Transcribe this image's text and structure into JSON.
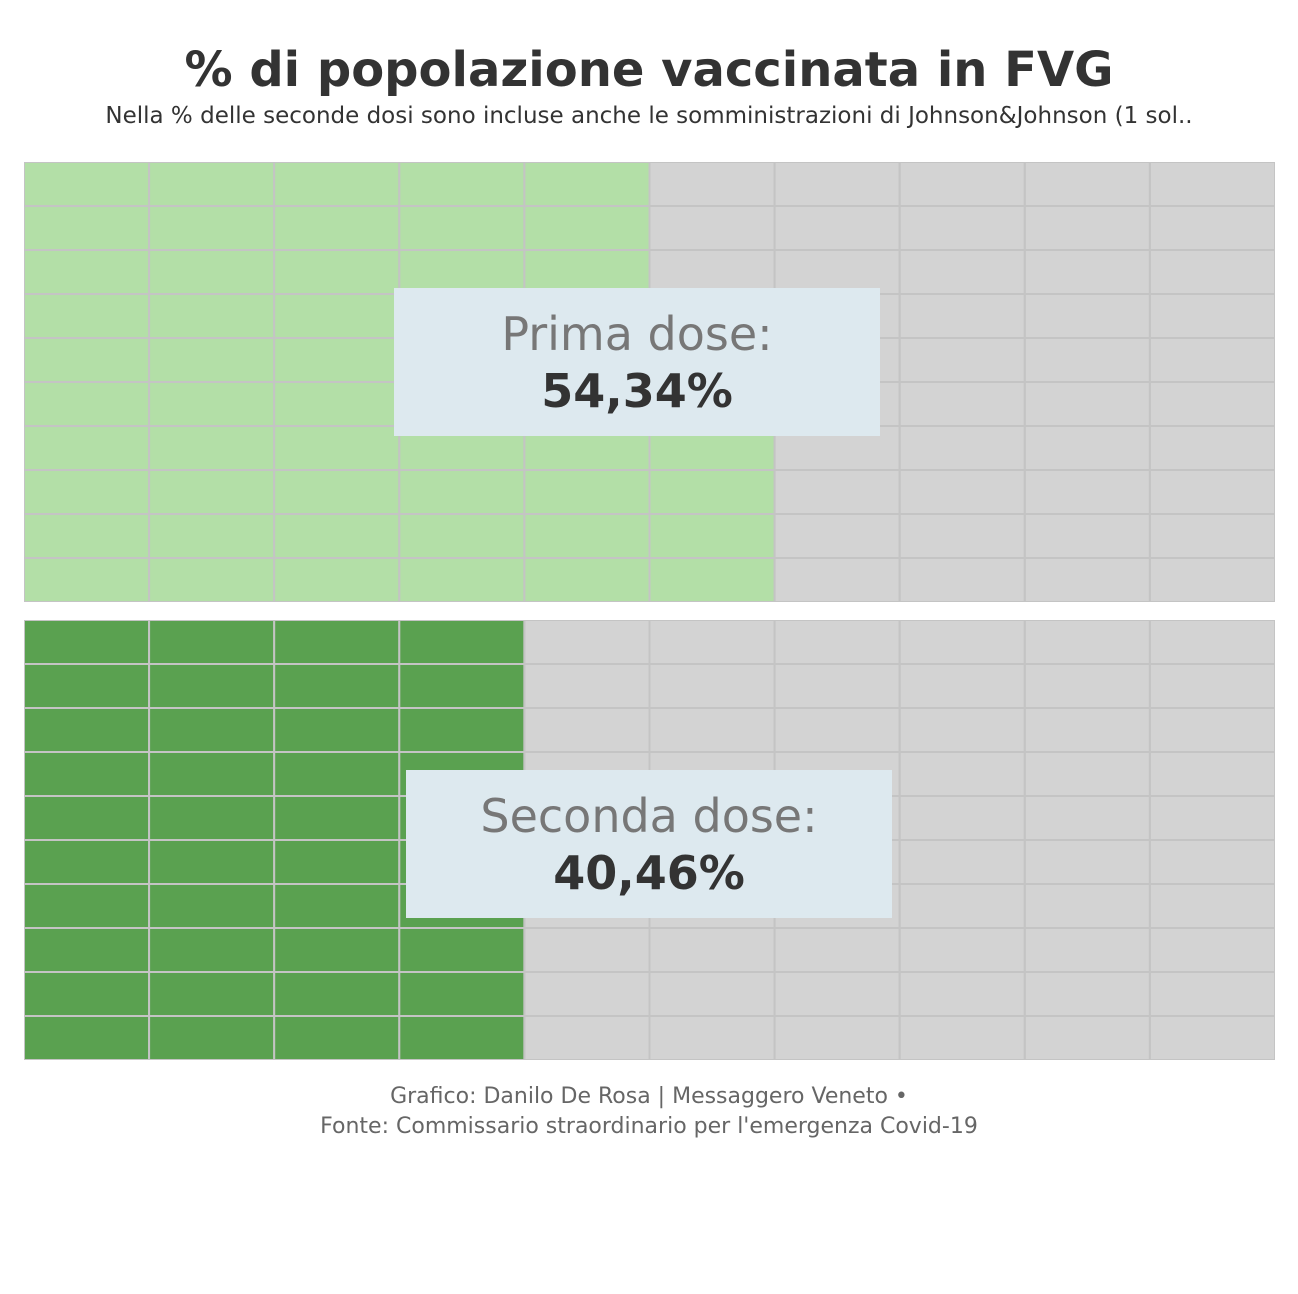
{
  "title": "% di popolazione vaccinata in FVG",
  "subtitle": "Nella % delle seconde dosi sono incluse anche le somministrazioni di Johnson&Johnson (1 sol..",
  "footer": {
    "line1": "Grafico: Danilo De Rosa | Messaggero Veneto •",
    "line2": "Fonte: Commissario straordinario per l'emergenza Covid-19"
  },
  "colors": {
    "empty": "#d3d3d3",
    "grid": "#c4c4c4",
    "prima": "#b3dfa7",
    "seconda": "#5aa150",
    "label_bg": "#dde9ef"
  },
  "chart_data": [
    {
      "type": "waffle",
      "name": "Prima dose",
      "label": "Prima dose:",
      "value_label": "54,34%",
      "value": 54.34,
      "grid": {
        "columns": 10,
        "rows": 10
      }
    },
    {
      "type": "waffle",
      "name": "Seconda dose",
      "label": "Seconda dose:",
      "value_label": "40,46%",
      "value": 40.46,
      "grid": {
        "columns": 10,
        "rows": 10
      }
    }
  ]
}
